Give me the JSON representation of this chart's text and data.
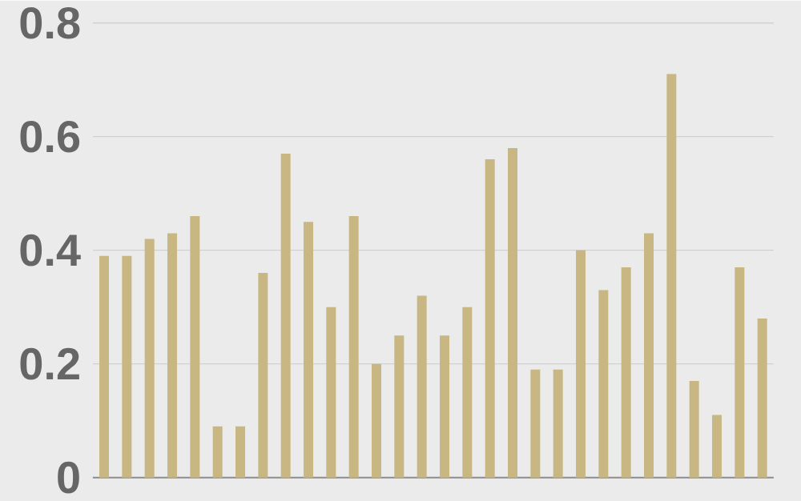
{
  "chart_data": {
    "type": "bar",
    "categories": [
      null,
      null,
      null,
      null,
      null,
      null,
      null,
      null,
      null,
      null,
      null,
      null,
      null,
      null,
      null,
      null,
      null,
      null,
      null,
      null,
      null,
      null,
      null,
      null,
      null,
      null,
      null,
      null,
      null,
      null
    ],
    "values": [
      0.39,
      0.39,
      0.42,
      0.43,
      0.46,
      0.09,
      0.09,
      0.36,
      0.57,
      0.45,
      0.3,
      0.46,
      0.2,
      0.25,
      0.32,
      0.25,
      0.3,
      0.56,
      0.58,
      0.19,
      0.19,
      0.4,
      0.33,
      0.37,
      0.43,
      0.71,
      0.17,
      0.11,
      0.37,
      0.28
    ],
    "color": "#c8b782",
    "ylim": [
      0,
      0.8
    ],
    "yticks": [
      0,
      0.2,
      0.4,
      0.6,
      0.8
    ],
    "grid": "y"
  }
}
